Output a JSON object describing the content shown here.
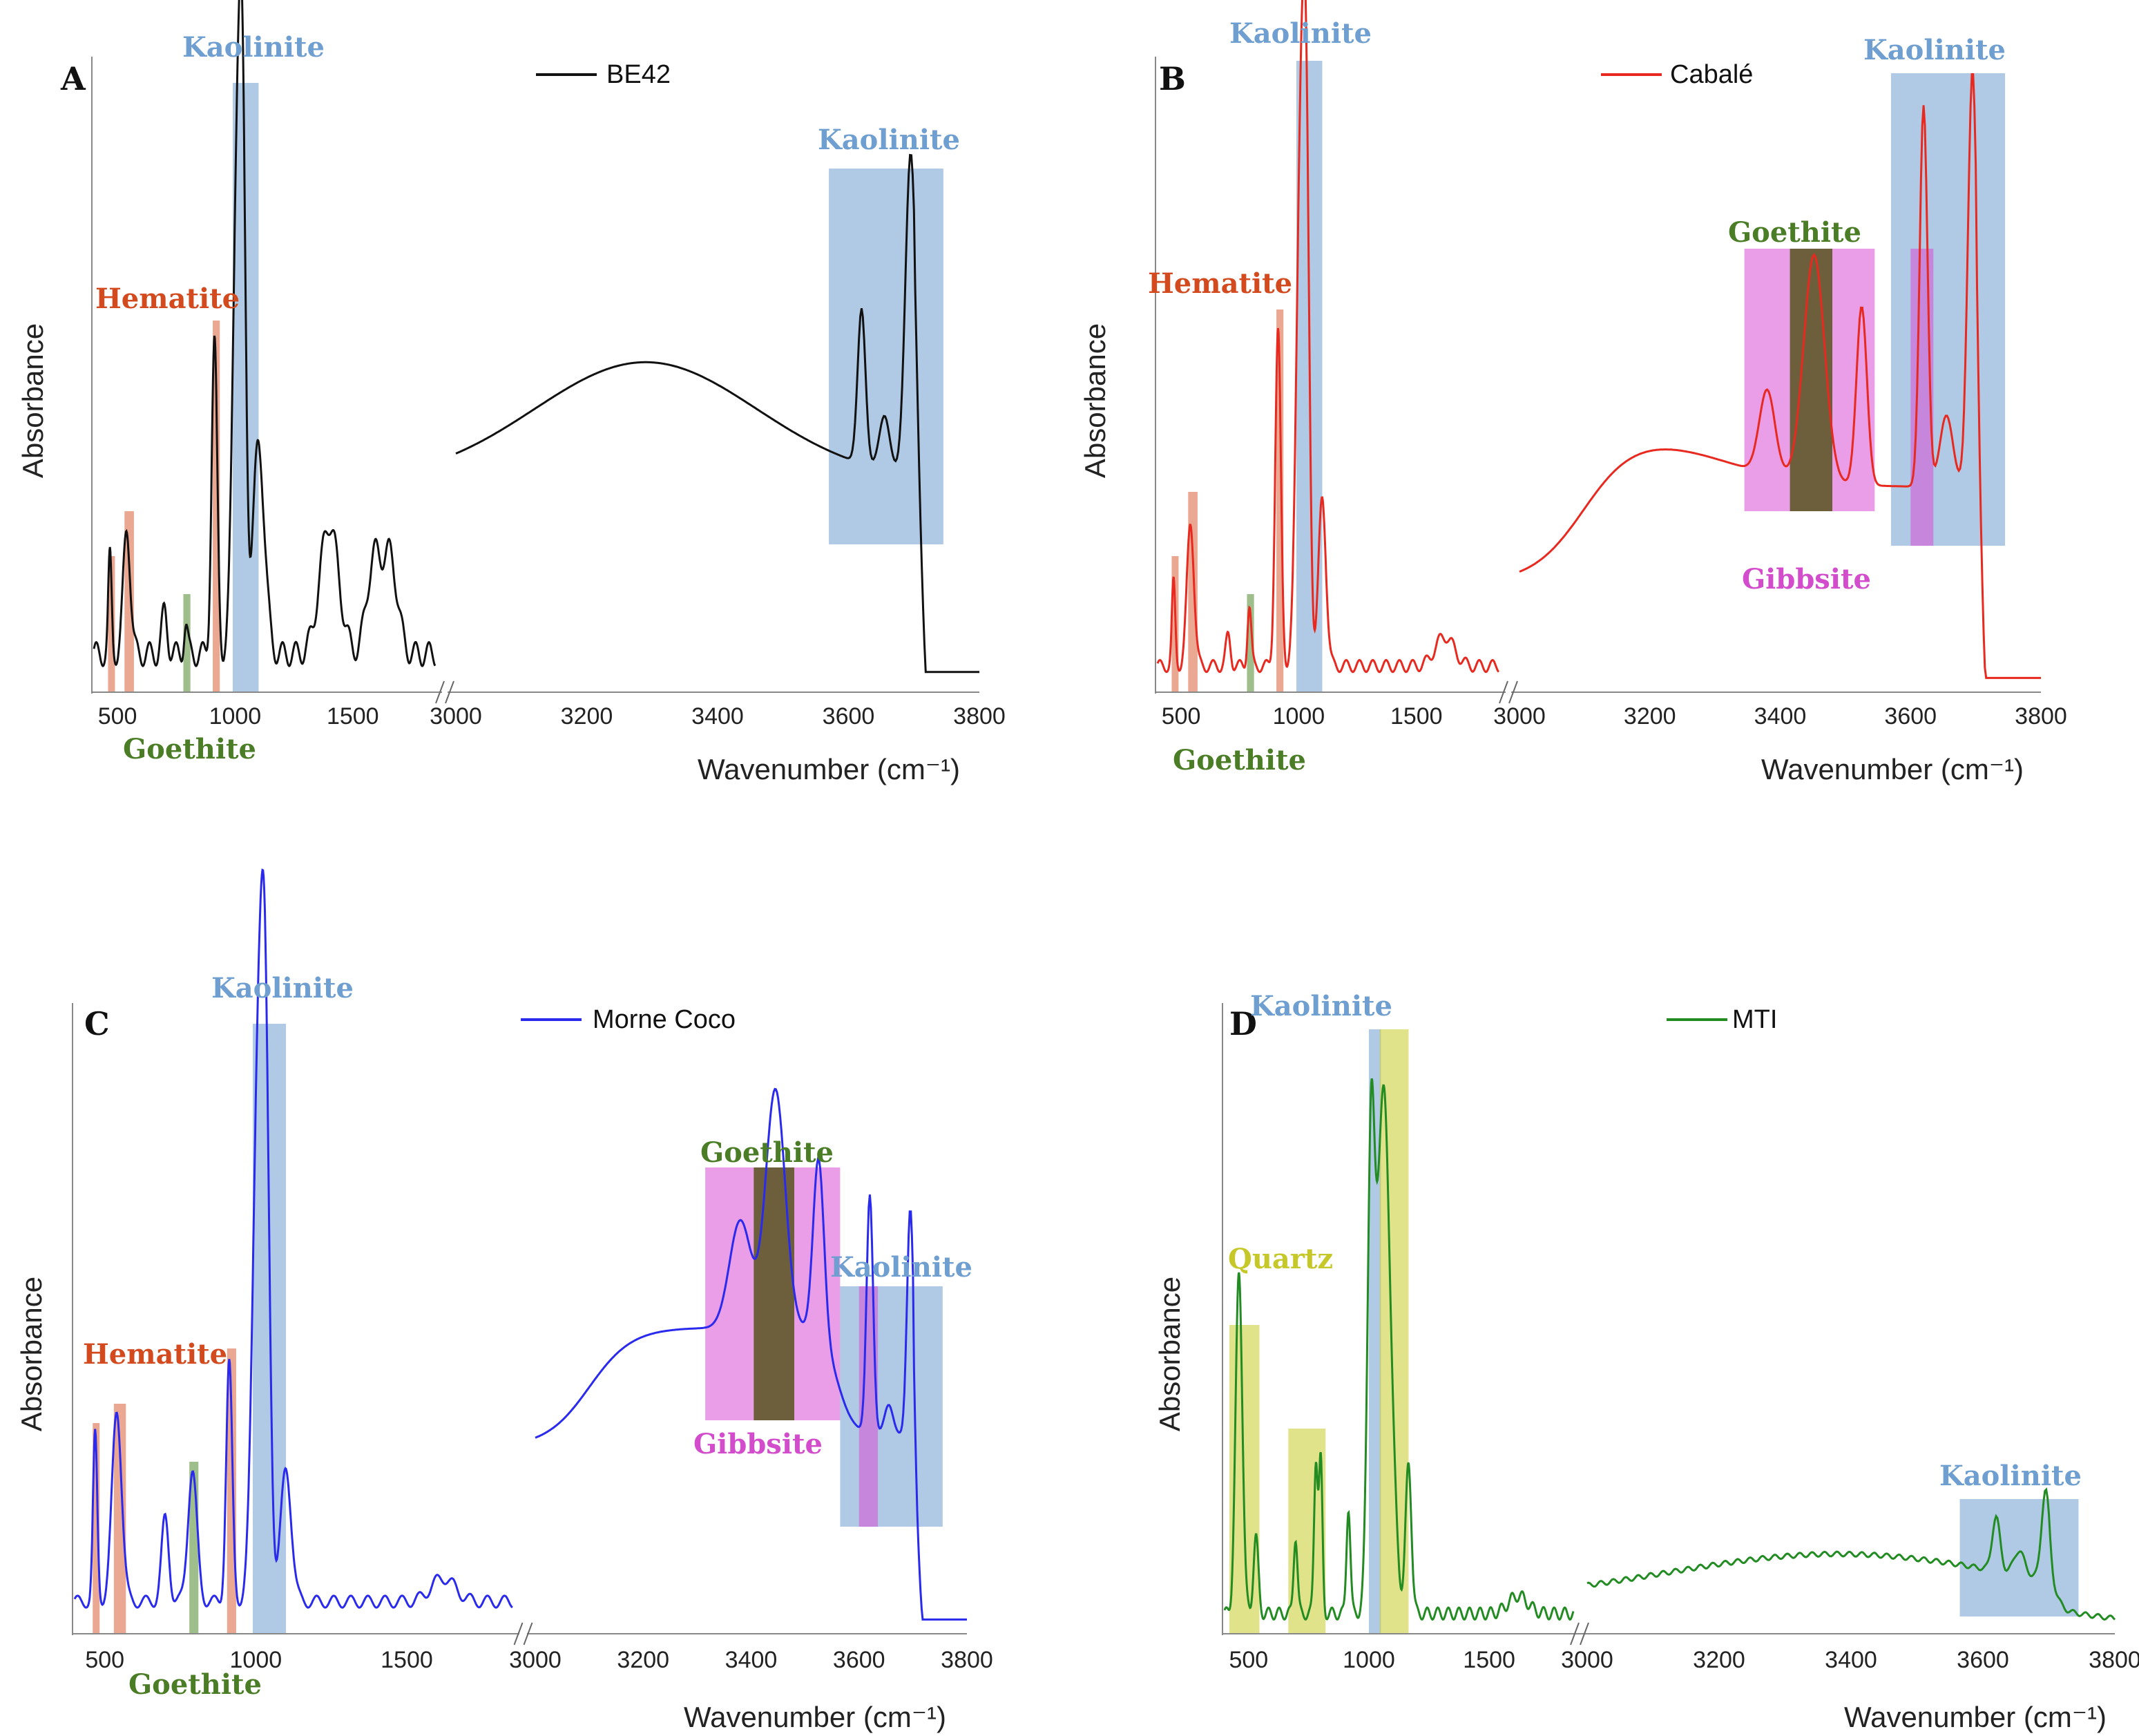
{
  "figure": {
    "x_axis_label": "Wavenumber (cm⁻¹)",
    "y_axis_label": "Absorbance",
    "colors": {
      "kaolinite": "#6f9fd0",
      "hematite": "#d9603a",
      "goethite": "#4f8a2b",
      "gibbsite": "#d74ed3",
      "quartz": "#c8cc2a",
      "kaolinite_label": "#6f9fd0",
      "hematite_label": "#d24a1e",
      "goethite_label": "#4a7d25",
      "gibbsite_label": "#d24ccc",
      "quartz_label": "#c6c82a"
    }
  },
  "chart_data": [
    {
      "panel": "A",
      "type": "line",
      "series": [
        {
          "name": "BE42",
          "color": "#111111"
        }
      ],
      "xlabel": "Wavenumber (cm⁻¹)",
      "ylabel": "Absorbance",
      "x_ticks_low": [
        500,
        1000,
        1500
      ],
      "x_ticks_high": [
        3000,
        3200,
        3400,
        3600,
        3800
      ],
      "xlim_low": [
        400,
        1850
      ],
      "xlim_high": [
        3000,
        3800
      ],
      "regions": [
        {
          "mineral": "Hematite",
          "range": [
            460,
            475
          ]
        },
        {
          "mineral": "Hematite",
          "range": [
            530,
            570
          ]
        },
        {
          "mineral": "Goethite",
          "range": [
            780,
            810
          ]
        },
        {
          "mineral": "Hematite",
          "range": [
            905,
            935
          ]
        },
        {
          "mineral": "Kaolinite",
          "range": [
            990,
            1100
          ]
        },
        {
          "mineral": "Kaolinite",
          "range": [
            3570,
            3745
          ]
        }
      ],
      "labels": [
        "Kaolinite",
        "Hematite",
        "Goethite",
        "Kaolinite"
      ],
      "peaks": [
        468,
        540,
        700,
        790,
        912,
        1008,
        1032,
        1100,
        1400,
        1620,
        3620,
        3655,
        3695
      ]
    },
    {
      "panel": "B",
      "type": "line",
      "series": [
        {
          "name": "Cabalé",
          "color": "#e8291f"
        }
      ],
      "xlabel": "Wavenumber (cm⁻¹)",
      "ylabel": "Absorbance",
      "x_ticks_low": [
        500,
        1000,
        1500
      ],
      "x_ticks_high": [
        3000,
        3200,
        3400,
        3600,
        3800
      ],
      "xlim_low": [
        400,
        1850
      ],
      "xlim_high": [
        3000,
        3800
      ],
      "regions": [
        {
          "mineral": "Hematite",
          "range": [
            460,
            475
          ]
        },
        {
          "mineral": "Hematite",
          "range": [
            530,
            570
          ]
        },
        {
          "mineral": "Goethite",
          "range": [
            780,
            810
          ]
        },
        {
          "mineral": "Hematite",
          "range": [
            905,
            935
          ]
        },
        {
          "mineral": "Kaolinite",
          "range": [
            990,
            1100
          ]
        },
        {
          "mineral": "Gibbsite",
          "range": [
            3345,
            3545
          ]
        },
        {
          "mineral": "Goethite",
          "range": [
            3415,
            3480
          ]
        },
        {
          "mineral": "Kaolinite",
          "range": [
            3570,
            3745
          ]
        },
        {
          "mineral": "Gibbsite",
          "range": [
            3600,
            3635
          ]
        }
      ],
      "labels": [
        "Kaolinite",
        "Hematite",
        "Goethite",
        "Goethite",
        "Gibbsite",
        "Kaolinite"
      ],
      "peaks": [
        468,
        540,
        790,
        912,
        1008,
        1032,
        1100,
        1620,
        3380,
        3450,
        3525,
        3620,
        3695
      ]
    },
    {
      "panel": "C",
      "type": "line",
      "series": [
        {
          "name": "Morne Coco",
          "color": "#2a2aee"
        }
      ],
      "xlabel": "Wavenumber (cm⁻¹)",
      "ylabel": "Absorbance",
      "x_ticks_low": [
        500,
        1000,
        1500
      ],
      "x_ticks_high": [
        3000,
        3200,
        3400,
        3600,
        3800
      ],
      "xlim_low": [
        400,
        1850
      ],
      "xlim_high": [
        3000,
        3800
      ],
      "regions": [
        {
          "mineral": "Hematite",
          "range": [
            460,
            475
          ]
        },
        {
          "mineral": "Hematite",
          "range": [
            530,
            570
          ]
        },
        {
          "mineral": "Goethite",
          "range": [
            780,
            810
          ]
        },
        {
          "mineral": "Hematite",
          "range": [
            905,
            935
          ]
        },
        {
          "mineral": "Kaolinite",
          "range": [
            990,
            1100
          ]
        },
        {
          "mineral": "Gibbsite",
          "range": [
            3315,
            3565
          ]
        },
        {
          "mineral": "Goethite",
          "range": [
            3405,
            3480
          ]
        },
        {
          "mineral": "Kaolinite",
          "range": [
            3565,
            3755
          ]
        },
        {
          "mineral": "Gibbsite",
          "range": [
            3600,
            3635
          ]
        }
      ],
      "labels": [
        "Kaolinite",
        "Hematite",
        "Goethite",
        "Goethite",
        "Gibbsite",
        "Kaolinite"
      ],
      "peaks": [
        468,
        540,
        700,
        790,
        912,
        1008,
        1032,
        1100,
        1620,
        3380,
        3445,
        3525,
        3620,
        3695
      ]
    },
    {
      "panel": "D",
      "type": "line",
      "series": [
        {
          "name": "MTI",
          "color": "#228b22"
        }
      ],
      "xlabel": "Wavenumber (cm⁻¹)",
      "ylabel": "Absorbance",
      "x_ticks_low": [
        500,
        1000,
        1500
      ],
      "x_ticks_high": [
        3000,
        3200,
        3400,
        3600,
        3800
      ],
      "xlim_low": [
        400,
        1850
      ],
      "xlim_high": [
        3000,
        3800
      ],
      "regions": [
        {
          "mineral": "Quartz",
          "range": [
            420,
            545
          ]
        },
        {
          "mineral": "Quartz",
          "range": [
            665,
            820
          ]
        },
        {
          "mineral": "Kaolinite",
          "range": [
            1000,
            1050
          ]
        },
        {
          "mineral": "Quartz",
          "range": [
            1045,
            1165
          ]
        },
        {
          "mineral": "Kaolinite",
          "range": [
            3565,
            3745
          ]
        }
      ],
      "labels": [
        "Kaolinite",
        "Quartz",
        "Kaolinite"
      ],
      "peaks": [
        460,
        530,
        695,
        780,
        800,
        915,
        1008,
        1060,
        1165,
        1620,
        3620,
        3695
      ]
    }
  ]
}
